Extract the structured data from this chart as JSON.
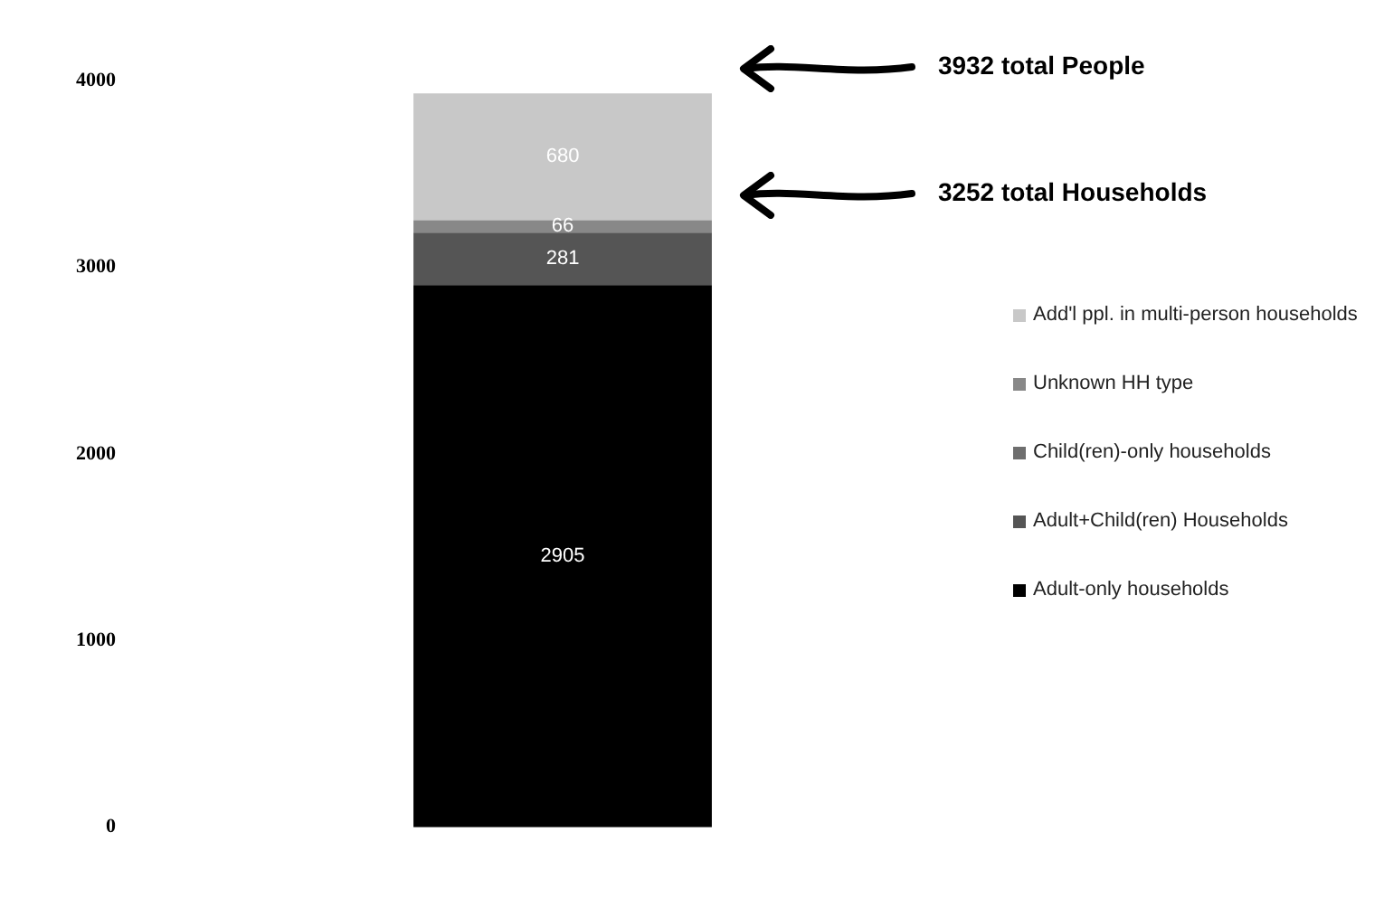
{
  "chart_data": {
    "type": "bar",
    "stacked": true,
    "categories": [
      null
    ],
    "series": [
      {
        "name": "Adult-only households",
        "color": "#000000",
        "values": [
          2905
        ],
        "value_labels": [
          "2905"
        ]
      },
      {
        "name": "Adult+Child(ren) Households",
        "color": "#555555",
        "values": [
          281
        ],
        "value_labels": [
          "281"
        ]
      },
      {
        "name": "Child(ren)-only households",
        "color": "#6e6e6e",
        "values": [
          0
        ],
        "value_labels": [
          null
        ]
      },
      {
        "name": "Unknown HH type",
        "color": "#888888",
        "values": [
          66
        ],
        "value_labels": [
          "66"
        ]
      },
      {
        "name": "Add'l ppl. in multi-person households",
        "color": "#c8c8c8",
        "values": [
          680
        ],
        "value_labels": [
          "680"
        ]
      }
    ],
    "ylim": [
      0,
      4000
    ],
    "yticks": [
      0,
      1000,
      2000,
      3000,
      4000
    ],
    "grid": false,
    "legend": "right",
    "annotations": [
      "3932 total People",
      "3252 total Households"
    ]
  }
}
